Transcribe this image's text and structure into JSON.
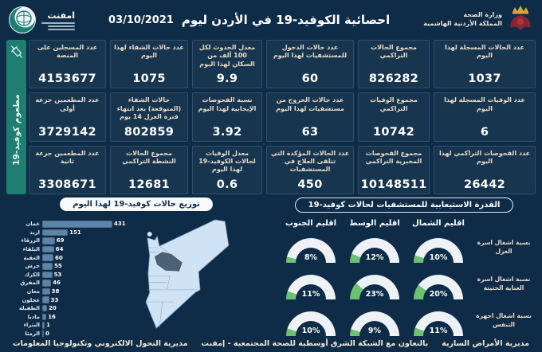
{
  "colors": {
    "background": "#0e2b48",
    "card": "#17354f",
    "teal": "#1f7d72",
    "green": "#6dc172",
    "gauge_track": "#eef2f4",
    "bar": "#5d84a9",
    "map_light": "#cfe3f4",
    "map_highlight": "#4c6175"
  },
  "header": {
    "title": "احصائية الكوفيد-19 في الأردن ليوم",
    "date": "03/10/2021",
    "moh_line1": "وزارة الصحة",
    "moh_line2": "المملكة الأردنية الهاشمية",
    "emphnet_name": "امفنت"
  },
  "stats": {
    "cards": [
      {
        "label": "عدد الحالات المسجلة لهذا اليوم",
        "value": "1037"
      },
      {
        "label": "عدد الوفيات المسجلة لهذا اليوم",
        "value": "6"
      },
      {
        "label": "عدد الفحوصات التراكمي لهذا اليوم",
        "value": "26442"
      },
      {
        "label": "مجموع الحالات التراكمي",
        "value": "826282"
      },
      {
        "label": "مجموع الوفيات التراكمي",
        "value": "10742"
      },
      {
        "label": "مجموع الفحوصات المخبرية التراكمي",
        "value": "10148511"
      },
      {
        "label": "عدد حالات الدخول للمستشفيات لهذا اليوم",
        "value": "60"
      },
      {
        "label": "عدد حالات الخروج من مستشفيات لهذا اليوم",
        "value": "63"
      },
      {
        "label": "عدد الحالات المؤكدة التي تتلقى العلاج في المستشفيات",
        "value": "450"
      },
      {
        "label": "معدل الحدوث لكل 100 ألف من السكان لهذا اليوم",
        "value": "9.9"
      },
      {
        "label": "نسبة الفحوصات الإيجابية لهذا اليوم",
        "value": "3.92"
      },
      {
        "label": "معدل الوفيات لحالات الكوفيد-19 لهذا اليوم",
        "value": "0.6"
      },
      {
        "label": "عدد حالات الشفاء لهذا اليوم",
        "value": "1075"
      },
      {
        "label": "حالات الشفاء (المتوقعة) بعد انتهاء فترة العزل 14 يوم",
        "value": "802859"
      },
      {
        "label": "مجموع الحالات النشطة التراكمي",
        "value": "12681"
      },
      {
        "label": "عدد المسجلين على المنصة",
        "value": "4153677"
      },
      {
        "label": "عدد المطعمين جرعة أولى",
        "value": "3729142"
      },
      {
        "label": "عدد المطعمين جرعة ثانية",
        "value": "3308671"
      }
    ],
    "vaccine_strip_label": "مطعوم كوفيد-19"
  },
  "chart_data": [
    {
      "type": "bar",
      "orientation": "horizontal",
      "title": "توزيع حالات كوفيد-19 لهذا اليوم",
      "categories": [
        "عمان",
        "اربد",
        "الزرقاء",
        "البلقاء",
        "العقبة",
        "جرش",
        "الكرك",
        "المفرق",
        "معان",
        "عجلون",
        "الطفيلة",
        "مادبا",
        "البتراء",
        "الرمثا"
      ],
      "values": [
        431,
        151,
        69,
        64,
        60,
        55,
        53,
        46,
        38,
        33,
        20,
        16,
        1,
        0
      ],
      "xlim": [
        0,
        431
      ],
      "grid": false,
      "data_labels": true
    },
    {
      "type": "gauge",
      "title": "القدرة الاستيعابية للمستشفيات لحالات كوفيد-19",
      "columns": [
        "اقليم الشمال",
        "اقليم الوسط",
        "اقليم الجنوب"
      ],
      "rows": [
        {
          "label": "نسبة اشغال اسرة العزل",
          "values": [
            10,
            12,
            8
          ]
        },
        {
          "label": "نسبة اشغال اسرة العناية الحثيثة",
          "values": [
            20,
            23,
            11
          ]
        },
        {
          "label": "نسبة اشغال اجهزة التنفس",
          "values": [
            11,
            9,
            10
          ]
        }
      ],
      "unit": "%",
      "range": [
        0,
        100
      ]
    }
  ],
  "footer": {
    "right": "مديرية الأمراض السارية",
    "center": "بالتعاون مع الشبكة الشرق أوسطية للصحة المجتمعية - إمفنت",
    "left": "مديرية التحول الالكتروني وتكنولوجيا المعلومات"
  }
}
